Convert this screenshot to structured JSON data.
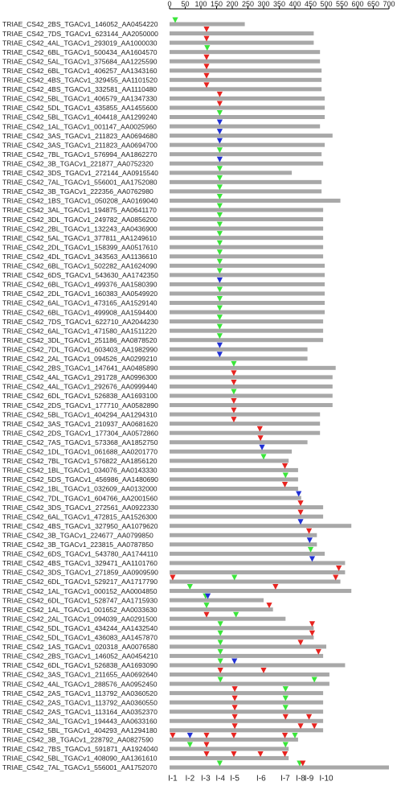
{
  "scale": {
    "min": 0,
    "max": 700,
    "step": 50,
    "tick_labels": [
      "0",
      "50",
      "100",
      "150",
      "200",
      "250",
      "300",
      "350",
      "400",
      "450",
      "500",
      "550",
      "600",
      "650",
      "700"
    ]
  },
  "intron_labels": [
    {
      "label": "I-1",
      "pos": 10
    },
    {
      "label": "I-2",
      "pos": 65
    },
    {
      "label": "I-3",
      "pos": 115
    },
    {
      "label": "I-4",
      "pos": 162
    },
    {
      "label": "I-5",
      "pos": 208
    },
    {
      "label": "I-6",
      "pos": 292
    },
    {
      "label": "I-7",
      "pos": 369
    },
    {
      "label": "I-8",
      "pos": 418
    },
    {
      "label": "I-9",
      "pos": 445
    },
    {
      "label": "I-10",
      "pos": 500
    }
  ],
  "colors": {
    "red": "#e8231f",
    "green": "#39e639",
    "blue": "#1f2fd6",
    "bar": "#a8a8a8",
    "axis": "#000000",
    "text": "#222222"
  },
  "rows": [
    {
      "name": "TRIAE_CS42_2BS_TGACv1_146052_AA0454220",
      "len": 240,
      "marks": [
        [
          "g",
          18
        ]
      ]
    },
    {
      "name": "TRIAE_CS42_7DS_TGACv1_623144_AA2050000",
      "len": 460,
      "marks": [
        [
          "r",
          118
        ]
      ]
    },
    {
      "name": "TRIAE_CS42_4AL_TGACv1_293019_AA1000030",
      "len": 460,
      "marks": [
        [
          "r",
          118
        ]
      ]
    },
    {
      "name": "TRIAE_CS42_6BL_TGACv1_500434_AA1604570",
      "len": 480,
      "marks": [
        [
          "g",
          120
        ]
      ]
    },
    {
      "name": "TRIAE_CS42_5AL_TGACv1_375684_AA1225590",
      "len": 480,
      "marks": [
        [
          "r",
          118
        ]
      ]
    },
    {
      "name": "TRIAE_CS42_6BL_TGACv1_406257_AA1343160",
      "len": 485,
      "marks": [
        [
          "r",
          118
        ]
      ]
    },
    {
      "name": "TRIAE_CS42_4BS_TGACv1_329455_AA1101520",
      "len": 485,
      "marks": [
        [
          "r",
          118
        ]
      ]
    },
    {
      "name": "TRIAE_CS42_4BS_TGACv1_332581_AA1110480",
      "len": 485,
      "marks": [
        [
          "r",
          118
        ]
      ]
    },
    {
      "name": "TRIAE_CS42_5BL_TGACv1_406579_AA1347330",
      "len": 495,
      "marks": [
        [
          "r",
          160
        ]
      ]
    },
    {
      "name": "TRIAE_CS42_5DL_TGACv1_435855_AA1455600",
      "len": 495,
      "marks": [
        [
          "r",
          160
        ]
      ]
    },
    {
      "name": "TRIAE_CS42_5BL_TGACv1_404418_AA1299240",
      "len": 495,
      "marks": [
        [
          "g",
          160
        ]
      ]
    },
    {
      "name": "TRIAE_CS42_1AL_TGACv1_001147_AA0025960",
      "len": 480,
      "marks": [
        [
          "b",
          160
        ]
      ]
    },
    {
      "name": "TRIAE_CS42_3AS_TGACv1_211823_AA0694680",
      "len": 520,
      "marks": [
        [
          "b",
          160
        ]
      ]
    },
    {
      "name": "TRIAE_CS42_3AS_TGACv1_211823_AA0694700",
      "len": 495,
      "marks": [
        [
          "b",
          160
        ]
      ]
    },
    {
      "name": "TRIAE_CS42_7BL_TGACv1_576994_AA1862270",
      "len": 485,
      "marks": [
        [
          "g",
          160
        ]
      ]
    },
    {
      "name": "TRIAE_CS42_3B_TGACv1_221877_AA0752320",
      "len": 490,
      "marks": [
        [
          "b",
          160
        ]
      ]
    },
    {
      "name": "TRIAE_CS42_3DS_TGACv1_272144_AA0915540",
      "len": 390,
      "marks": [
        [
          "g",
          160
        ]
      ]
    },
    {
      "name": "TRIAE_CS42_7AL_TGACv1_556001_AA1752080",
      "len": 485,
      "marks": [
        [
          "g",
          160
        ]
      ]
    },
    {
      "name": "TRIAE_CS42_3B_TGACv1_222356_AA0762980",
      "len": 485,
      "marks": [
        [
          "g",
          160
        ]
      ]
    },
    {
      "name": "TRIAE_CS42_1BS_TGACv1_050208_AA0169040",
      "len": 545,
      "marks": [
        [
          "g",
          160
        ]
      ]
    },
    {
      "name": "TRIAE_CS42_3AL_TGACv1_194875_AA0641170",
      "len": 490,
      "marks": [
        [
          "g",
          160
        ]
      ]
    },
    {
      "name": "TRIAE_CS42_3DL_TGACv1_249782_AA0856200",
      "len": 490,
      "marks": [
        [
          "g",
          160
        ]
      ]
    },
    {
      "name": "TRIAE_CS42_2BL_TGACv1_132243_AA0436900",
      "len": 490,
      "marks": [
        [
          "g",
          160
        ]
      ]
    },
    {
      "name": "TRIAE_CS42_5AL_TGACv1_377811_AA1249610",
      "len": 490,
      "marks": [
        [
          "g",
          160
        ]
      ]
    },
    {
      "name": "TRIAE_CS42_2DL_TGACv1_158399_AA0517610",
      "len": 490,
      "marks": [
        [
          "g",
          160
        ]
      ]
    },
    {
      "name": "TRIAE_CS42_4DL_TGACv1_343563_AA1136610",
      "len": 490,
      "marks": [
        [
          "g",
          160
        ]
      ]
    },
    {
      "name": "TRIAE_CS42_6BL_TGACv1_502282_AA1624090",
      "len": 495,
      "marks": [
        [
          "g",
          160
        ]
      ]
    },
    {
      "name": "TRIAE_CS42_6DS_TGACv1_543630_AA1742350",
      "len": 495,
      "marks": [
        [
          "g",
          160
        ]
      ]
    },
    {
      "name": "TRIAE_CS42_6BL_TGACv1_499376_AA1580390",
      "len": 495,
      "marks": [
        [
          "b",
          160
        ]
      ]
    },
    {
      "name": "TRIAE_CS42_2DL_TGACv1_160383_AA0549920",
      "len": 495,
      "marks": [
        [
          "g",
          160
        ]
      ]
    },
    {
      "name": "TRIAE_CS42_6AL_TGACv1_473165_AA1529140",
      "len": 495,
      "marks": [
        [
          "g",
          160
        ]
      ]
    },
    {
      "name": "TRIAE_CS42_6BL_TGACv1_499908_AA1594400",
      "len": 495,
      "marks": [
        [
          "g",
          160
        ]
      ]
    },
    {
      "name": "TRIAE_CS42_7DS_TGACv1_622710_AA2044230",
      "len": 490,
      "marks": [
        [
          "g",
          160
        ]
      ]
    },
    {
      "name": "TRIAE_CS42_6AL_TGACv1_471580_AA1511220",
      "len": 490,
      "marks": [
        [
          "g",
          160
        ]
      ]
    },
    {
      "name": "TRIAE_CS42_3DL_TGACv1_251186_AA0878520",
      "len": 490,
      "marks": [
        [
          "g",
          160
        ]
      ]
    },
    {
      "name": "TRIAE_CS42_7DL_TGACv1_603403_AA1982990",
      "len": 440,
      "marks": [
        [
          "b",
          160
        ]
      ]
    },
    {
      "name": "TRIAE_CS42_2AL_TGACv1_094526_AA0299210",
      "len": 440,
      "marks": [
        [
          "b",
          160
        ]
      ]
    },
    {
      "name": "TRIAE_CS42_2BS_TGACv1_147641_AA0485890",
      "len": 530,
      "marks": [
        [
          "g",
          205
        ]
      ]
    },
    {
      "name": "TRIAE_CS42_4AL_TGACv1_291728_AA0996300",
      "len": 520,
      "marks": [
        [
          "r",
          205
        ]
      ]
    },
    {
      "name": "TRIAE_CS42_4AL_TGACv1_292676_AA0999440",
      "len": 520,
      "marks": [
        [
          "r",
          205
        ]
      ]
    },
    {
      "name": "TRIAE_CS42_6DL_TGACv1_526838_AA1693100",
      "len": 520,
      "marks": [
        [
          "g",
          205
        ]
      ]
    },
    {
      "name": "TRIAE_CS42_2DS_TGACv1_177710_AA0582890",
      "len": 520,
      "marks": [
        [
          "r",
          205
        ]
      ]
    },
    {
      "name": "TRIAE_CS42_5BL_TGACv1_404294_AA1294310",
      "len": 480,
      "marks": [
        [
          "r",
          205
        ]
      ]
    },
    {
      "name": "TRIAE_CS42_3AS_TGACv1_210937_AA0681620",
      "len": 480,
      "marks": [
        [
          "r",
          205
        ]
      ]
    },
    {
      "name": "TRIAE_CS42_2DS_TGACv1_177304_AA0572860",
      "len": 480,
      "marks": [
        [
          "r",
          288
        ]
      ]
    },
    {
      "name": "TRIAE_CS42_7AS_TGACv1_573368_AA1852750",
      "len": 440,
      "marks": [
        [
          "r",
          290
        ]
      ]
    },
    {
      "name": "TRIAE_CS42_1DL_TGACv1_061688_AA0201770",
      "len": 390,
      "marks": [
        [
          "b",
          295
        ]
      ]
    },
    {
      "name": "TRIAE_CS42_7BL_TGACv1_576822_AA1856120",
      "len": 380,
      "marks": [
        [
          "g",
          300
        ]
      ]
    },
    {
      "name": "TRIAE_CS42_1BL_TGACv1_034076_AA0143330",
      "len": 410,
      "marks": [
        [
          "r",
          368
        ]
      ]
    },
    {
      "name": "TRIAE_CS42_5DS_TGACv1_456986_AA1480690",
      "len": 410,
      "marks": [
        [
          "g",
          370
        ]
      ]
    },
    {
      "name": "TRIAE_CS42_1BL_TGACv1_032609_AA0132000",
      "len": 410,
      "marks": [
        [
          "r",
          368
        ]
      ]
    },
    {
      "name": "TRIAE_CS42_7DL_TGACv1_604766_AA2001560",
      "len": 420,
      "marks": [
        [
          "b",
          412
        ]
      ]
    },
    {
      "name": "TRIAE_CS42_3DS_TGACv1_272561_AA0922330",
      "len": 490,
      "marks": [
        [
          "r",
          418
        ]
      ]
    },
    {
      "name": "TRIAE_CS42_6AL_TGACv1_472815_AA1526300",
      "len": 490,
      "marks": [
        [
          "r",
          418
        ]
      ]
    },
    {
      "name": "TRIAE_CS42_4BS_TGACv1_327950_AA1079620",
      "len": 580,
      "marks": [
        [
          "b",
          418
        ]
      ]
    },
    {
      "name": "TRIAE_CS42_3B_TGACv1_224677_AA0799850",
      "len": 470,
      "marks": [
        [
          "r",
          445
        ]
      ]
    },
    {
      "name": "TRIAE_CS42_3B_TGACv1_223815_AA0787850",
      "len": 470,
      "marks": [
        [
          "b",
          447
        ]
      ]
    },
    {
      "name": "TRIAE_CS42_6DS_TGACv1_543780_AA1744110",
      "len": 495,
      "marks": [
        [
          "g",
          450
        ]
      ]
    },
    {
      "name": "TRIAE_CS42_4BS_TGACv1_329471_AA1101760",
      "len": 560,
      "marks": [
        [
          "b",
          455
        ]
      ]
    },
    {
      "name": "TRIAE_CS42_3DS_TGACv1_271859_AA0909590",
      "len": 560,
      "marks": [
        [
          "r",
          540
        ]
      ]
    },
    {
      "name": "TRIAE_CS42_6DL_TGACv1_529217_AA1717790",
      "len": 545,
      "marks": [
        [
          "r",
          10
        ],
        [
          "g",
          207
        ],
        [
          "r",
          530
        ]
      ]
    },
    {
      "name": "TRIAE_CS42_1AL_TGACv1_000152_AA0004850",
      "len": 580,
      "marks": [
        [
          "g",
          65
        ],
        [
          "r",
          338
        ]
      ]
    },
    {
      "name": "TRIAE_CS42_6DL_TGACv1_528747_AA1715930",
      "len": 300,
      "marks": [
        [
          "g",
          115
        ],
        [
          "b",
          122
        ]
      ]
    },
    {
      "name": "TRIAE_CS42_1AL_TGACv1_001652_AA0033630",
      "len": 330,
      "marks": [
        [
          "g",
          118
        ],
        [
          "r",
          318
        ]
      ]
    },
    {
      "name": "TRIAE_CS42_2AL_TGACv1_094039_AA0291500",
      "len": 370,
      "marks": [
        [
          "r",
          118
        ],
        [
          "g",
          212
        ]
      ]
    },
    {
      "name": "TRIAE_CS42_5DL_TGACv1_434244_AA1432540",
      "len": 460,
      "marks": [
        [
          "g",
          162
        ],
        [
          "r",
          455
        ]
      ]
    },
    {
      "name": "TRIAE_CS42_5DL_TGACv1_436083_AA1457870",
      "len": 460,
      "marks": [
        [
          "g",
          162
        ],
        [
          "r",
          455
        ]
      ]
    },
    {
      "name": "TRIAE_CS42_1AS_TGACv1_020318_AA0076580",
      "len": 500,
      "marks": [
        [
          "g",
          162
        ],
        [
          "r",
          418
        ]
      ]
    },
    {
      "name": "TRIAE_CS42_2BS_TGACv1_146052_AA0454210",
      "len": 490,
      "marks": [
        [
          "g",
          162
        ],
        [
          "r",
          475
        ]
      ]
    },
    {
      "name": "TRIAE_CS42_6DL_TGACv1_526838_AA1693090",
      "len": 560,
      "marks": [
        [
          "g",
          162
        ],
        [
          "b",
          207
        ]
      ]
    },
    {
      "name": "TRIAE_CS42_3AS_TGACv1_211655_AA0692640",
      "len": 510,
      "marks": [
        [
          "r",
          162
        ],
        [
          "r",
          300
        ]
      ]
    },
    {
      "name": "TRIAE_CS42_4AL_TGACv1_288576_AA0952450",
      "len": 510,
      "marks": [
        [
          "g",
          162
        ],
        [
          "g",
          462
        ]
      ]
    },
    {
      "name": "TRIAE_CS42_2AS_TGACv1_113792_AA0360520",
      "len": 490,
      "marks": [
        [
          "r",
          208
        ],
        [
          "g",
          370
        ]
      ]
    },
    {
      "name": "TRIAE_CS42_2AS_TGACv1_113792_AA0360550",
      "len": 490,
      "marks": [
        [
          "r",
          208
        ],
        [
          "g",
          370
        ]
      ]
    },
    {
      "name": "TRIAE_CS42_2AS_TGACv1_113164_AA0352370",
      "len": 490,
      "marks": [
        [
          "r",
          208
        ],
        [
          "g",
          370
        ]
      ]
    },
    {
      "name": "TRIAE_CS42_3AL_TGACv1_194443_AA0633160",
      "len": 490,
      "marks": [
        [
          "r",
          208
        ],
        [
          "r",
          370
        ],
        [
          "r",
          445
        ]
      ]
    },
    {
      "name": "TRIAE_CS42_5BL_TGACv1_404293_AA1294180",
      "len": 490,
      "marks": [
        [
          "r",
          208
        ],
        [
          "r",
          418
        ],
        [
          "r",
          462
        ]
      ]
    },
    {
      "name": "TRIAE_CS42_3B_TGACv1_228792_AA0827590",
      "len": 410,
      "marks": [
        [
          "r",
          10
        ],
        [
          "b",
          65
        ],
        [
          "r",
          118
        ],
        [
          "r",
          205
        ],
        [
          "r",
          368
        ],
        [
          "g",
          400
        ]
      ]
    },
    {
      "name": "TRIAE_CS42_7BS_TGACv1_591871_AA1924040",
      "len": 380,
      "marks": [
        [
          "g",
          65
        ],
        [
          "r",
          118
        ],
        [
          "g",
          370
        ]
      ]
    },
    {
      "name": "TRIAE_CS42_5BL_TGACv1_408090_AA1361610",
      "len": 380,
      "marks": [
        [
          "r",
          118
        ],
        [
          "r",
          205
        ],
        [
          "r",
          290
        ],
        [
          "r",
          368
        ]
      ]
    },
    {
      "name": "TRIAE_CS42_7AL_TGACv1_556001_AA1752070",
      "len": 700,
      "marks": [
        [
          "g",
          160
        ],
        [
          "g",
          415
        ],
        [
          "r",
          425
        ]
      ]
    }
  ]
}
